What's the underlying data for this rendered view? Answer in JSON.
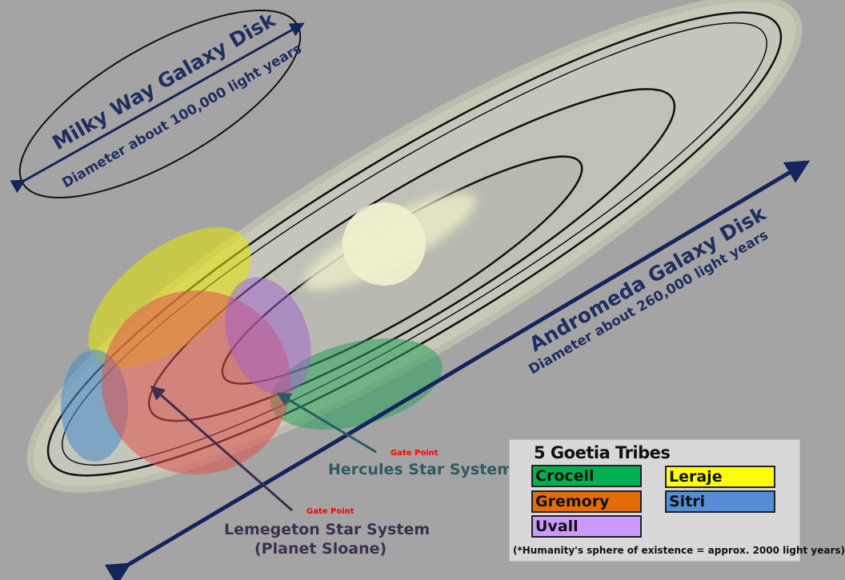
{
  "milky_way": {
    "title": "Milky Way Galaxy Disk",
    "subtitle": "Diameter about 100,000 light years"
  },
  "andromeda": {
    "title": "Andromeda Galaxy Disk",
    "subtitle": "Diameter about 260,000 light years"
  },
  "hercules": {
    "gate": "Gate Point",
    "name": "Hercules Star System"
  },
  "lemegeton": {
    "gate": "Gate Point",
    "name": "Lemegeton Star System",
    "sub": "(Planet Sloane)"
  },
  "legend": {
    "title": "5 Goetia Tribes",
    "items": [
      {
        "label": "Crocell",
        "color": "#00b050"
      },
      {
        "label": "Gremory",
        "color": "#e36c09"
      },
      {
        "label": "Uvall",
        "color": "#cc99ff"
      },
      {
        "label": "Leraje",
        "color": "#ffff00"
      },
      {
        "label": "Sitri",
        "color": "#558ed5"
      }
    ],
    "note": "(*Humanity's sphere of existence = approx. 2000 light years)"
  },
  "colors": {
    "arrow": "#14245c",
    "background": "#a4a4a4",
    "gate_text": "#ff0000"
  }
}
